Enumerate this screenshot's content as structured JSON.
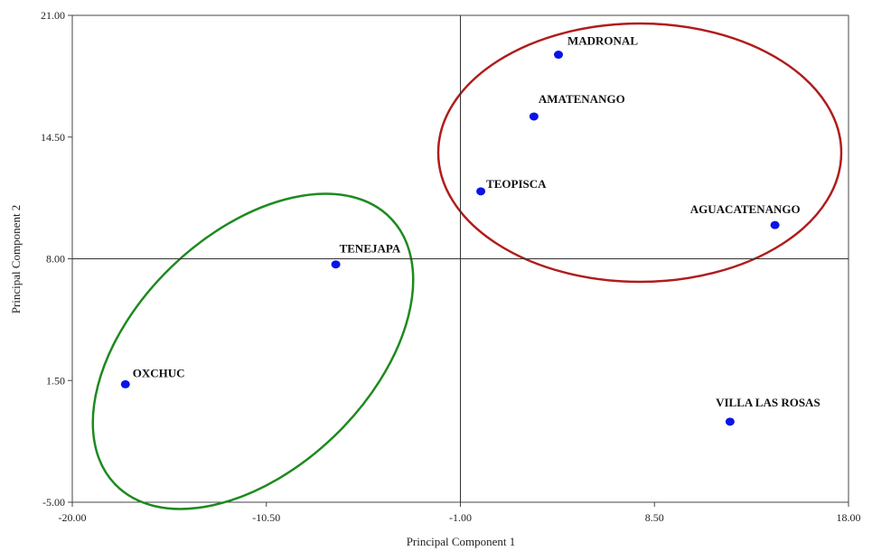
{
  "chart_data": {
    "type": "scatter",
    "title": "",
    "xlabel": "Principal Component 1",
    "ylabel": "Principal Component 2",
    "xlim": [
      -20.0,
      18.0
    ],
    "ylim": [
      -5.0,
      21.0
    ],
    "x_ticks": [
      "-20.00",
      "-10.50",
      "-1.00",
      "8.50",
      "18.00"
    ],
    "y_ticks": [
      "21.00",
      "14.50",
      "8.00",
      "1.50",
      "-5.00"
    ],
    "reference_lines": {
      "x": -1.0,
      "y": 8.0
    },
    "grid": false,
    "points": [
      {
        "label": "MADRONAL",
        "x": 3.8,
        "y": 18.9
      },
      {
        "label": "AMATENANGO",
        "x": 2.6,
        "y": 15.6
      },
      {
        "label": "TEOPISCA",
        "x": 0.0,
        "y": 11.6
      },
      {
        "label": "AGUACATENANGO",
        "x": 14.4,
        "y": 9.8
      },
      {
        "label": "TENEJAPA",
        "x": -7.1,
        "y": 7.7
      },
      {
        "label": "OXCHUC",
        "x": -17.4,
        "y": 1.3
      },
      {
        "label": "VILLA LAS ROSAS",
        "x": 12.2,
        "y": -0.7
      }
    ],
    "point_color": "#0a14e6",
    "groups": [
      {
        "color": "#b01c1c",
        "members": [
          "MADRONAL",
          "AMATENANGO",
          "TEOPISCA",
          "AGUACATENANGO"
        ]
      },
      {
        "color": "#1e8a1e",
        "members": [
          "TENEJAPA",
          "OXCHUC"
        ]
      }
    ]
  }
}
